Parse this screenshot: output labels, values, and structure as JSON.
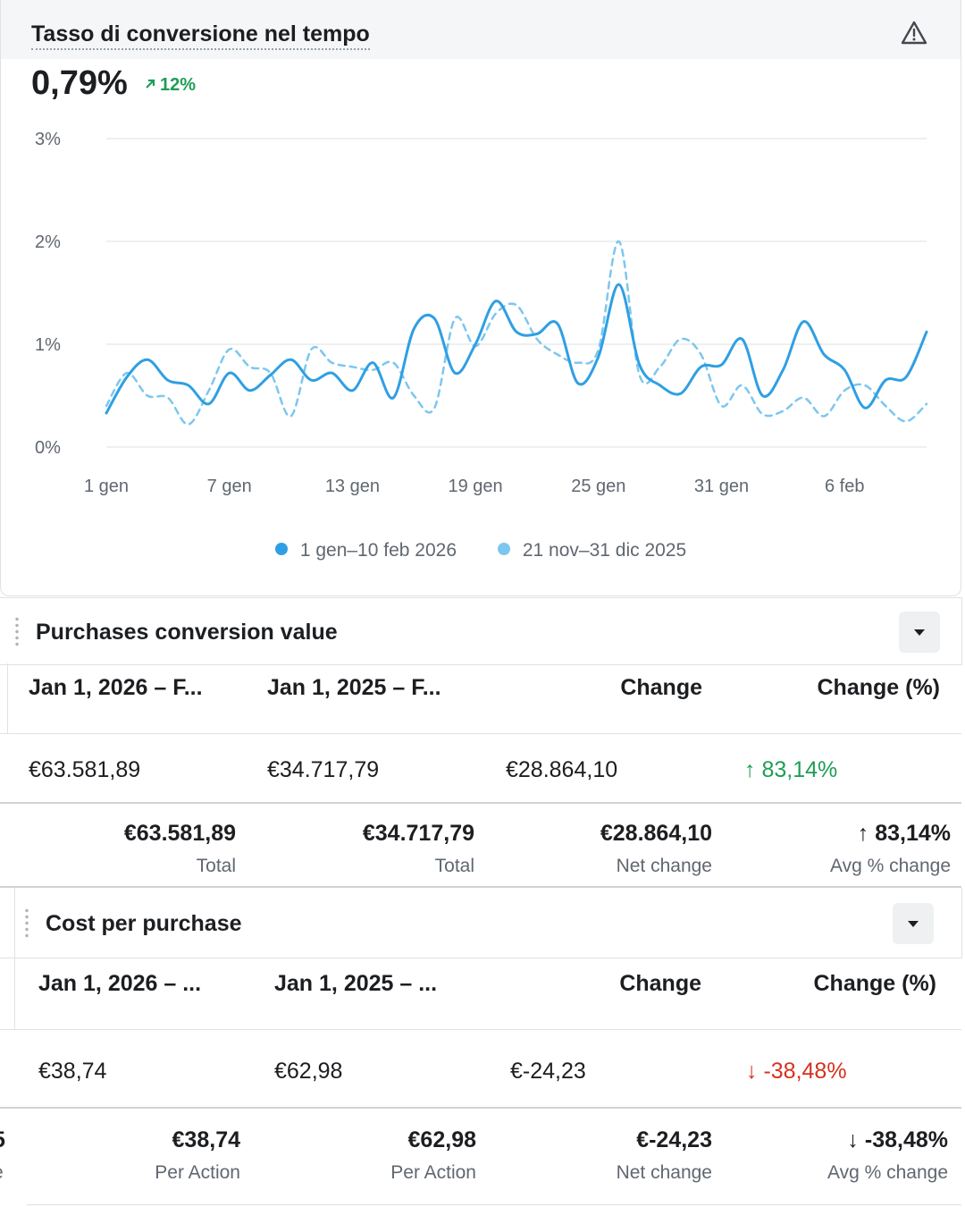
{
  "chart_card": {
    "title": "Tasso di conversione nel tempo",
    "value": "0,79%",
    "delta": "12%",
    "warning_icon": "warning-triangle-icon",
    "delta_icon": "arrow-up-right-icon"
  },
  "chart_data": {
    "type": "line",
    "y_ticks": [
      "3%",
      "2%",
      "1%",
      "0%"
    ],
    "x_ticks": [
      "1 gen",
      "7 gen",
      "13 gen",
      "19 gen",
      "25 gen",
      "31 gen",
      "6 feb"
    ],
    "ylim": [
      0,
      3
    ],
    "grid": true,
    "legend_position": "bottom",
    "x": [
      "1 gen",
      "2 gen",
      "3 gen",
      "4 gen",
      "5 gen",
      "6 gen",
      "7 gen",
      "8 gen",
      "9 gen",
      "10 gen",
      "11 gen",
      "12 gen",
      "13 gen",
      "14 gen",
      "15 gen",
      "16 gen",
      "17 gen",
      "18 gen",
      "19 gen",
      "20 gen",
      "21 gen",
      "22 gen",
      "23 gen",
      "24 gen",
      "25 gen",
      "26 gen",
      "27 gen",
      "28 gen",
      "29 gen",
      "30 gen",
      "31 gen",
      "1 feb",
      "2 feb",
      "3 feb",
      "4 feb",
      "5 feb",
      "6 feb",
      "7 feb",
      "8 feb",
      "9 feb",
      "10 feb"
    ],
    "series": [
      {
        "name": "1 gen–10 feb 2026",
        "color": "#2f9fe3",
        "style": "solid",
        "values": [
          0.33,
          0.68,
          0.85,
          0.65,
          0.6,
          0.42,
          0.72,
          0.55,
          0.7,
          0.85,
          0.65,
          0.72,
          0.55,
          0.82,
          0.48,
          1.15,
          1.25,
          0.72,
          1.0,
          1.42,
          1.12,
          1.1,
          1.2,
          0.62,
          0.88,
          1.58,
          0.8,
          0.6,
          0.52,
          0.78,
          0.8,
          1.05,
          0.5,
          0.75,
          1.22,
          0.9,
          0.75,
          0.38,
          0.65,
          0.68,
          1.12
        ]
      },
      {
        "name": "21 nov–31 dic 2025",
        "color": "#7cc7ee",
        "style": "dashed",
        "values": [
          0.4,
          0.72,
          0.5,
          0.48,
          0.22,
          0.55,
          0.95,
          0.78,
          0.72,
          0.3,
          0.95,
          0.82,
          0.78,
          0.75,
          0.82,
          0.5,
          0.38,
          1.25,
          0.98,
          1.3,
          1.38,
          1.05,
          0.9,
          0.82,
          0.95,
          2.0,
          0.7,
          0.78,
          1.05,
          0.9,
          0.4,
          0.6,
          0.32,
          0.35,
          0.48,
          0.3,
          0.55,
          0.6,
          0.4,
          0.25,
          0.42
        ]
      }
    ]
  },
  "purchases": {
    "title": "Purchases conversion value",
    "columns": [
      "Jan 1, 2026 – F...",
      "Jan 1, 2025 – F...",
      "Change",
      "Change (%)"
    ],
    "row": [
      "€63.581,89",
      "€34.717,79",
      "€28.864,10",
      "83,14%"
    ],
    "totals": [
      {
        "value": "€63.581,89",
        "label": "Total"
      },
      {
        "value": "€34.717,79",
        "label": "Total"
      },
      {
        "value": "€28.864,10",
        "label": "Net change"
      },
      {
        "value": "83,14%",
        "label": "Avg % change"
      }
    ],
    "arrow_up": "↑"
  },
  "cost": {
    "title": "Cost per purchase",
    "columns": [
      "Jan 1, 2026 – ...",
      "Jan 1, 2025 – ...",
      "Change",
      "Change (%)"
    ],
    "row": [
      "€38,74",
      "€62,98",
      "€-24,23",
      "-38,48%"
    ],
    "totals": [
      {
        "value": "€38,74",
        "label": "Per Action"
      },
      {
        "value": "€62,98",
        "label": "Per Action"
      },
      {
        "value": "€-24,23",
        "label": "Net change"
      },
      {
        "value": "-38,48%",
        "label": "Avg % change"
      }
    ],
    "arrow_down": "↓",
    "left_edge_fragments": [
      "5",
      "e"
    ]
  }
}
